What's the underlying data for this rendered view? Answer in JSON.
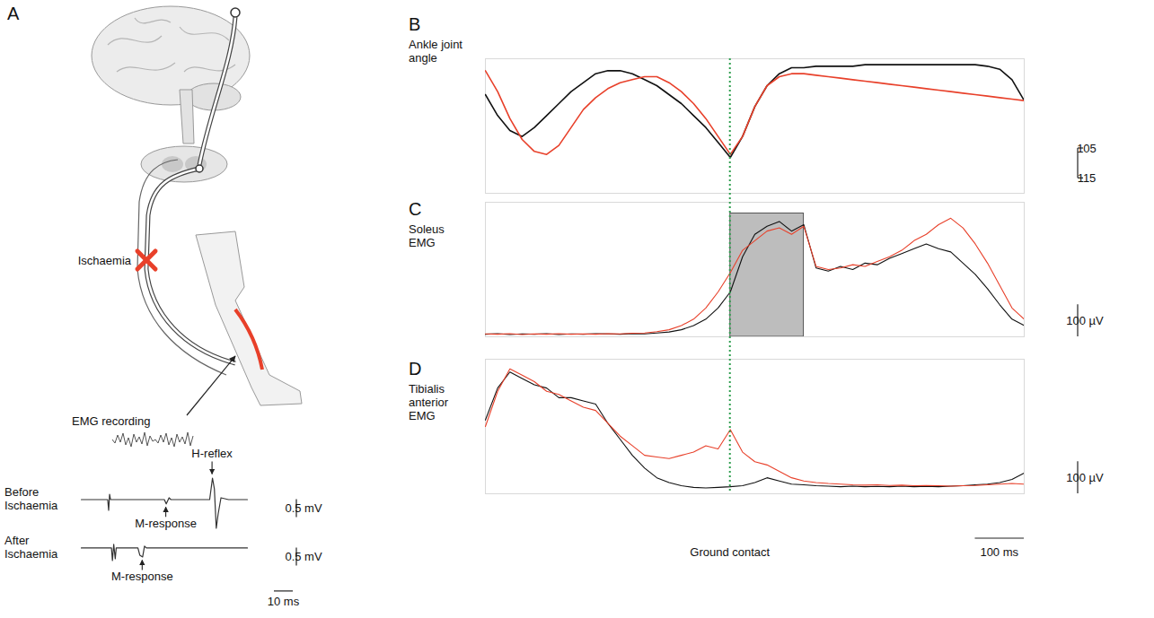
{
  "chart_data": [
    {
      "panel": "B",
      "type": "line",
      "title": "Ankle joint angle",
      "x": [
        0,
        25,
        50,
        75,
        100,
        125,
        150,
        175,
        200,
        225,
        250,
        275,
        300,
        325,
        350,
        375,
        400,
        425,
        450,
        475,
        500,
        525,
        550,
        575,
        600,
        625,
        650,
        675,
        700,
        725,
        750,
        775,
        800,
        825,
        850,
        875,
        900,
        925,
        950,
        975,
        1000,
        1025,
        1050,
        1075,
        1100
      ],
      "xlim": [
        0,
        1100
      ],
      "xticks": [],
      "ylim": [
        120,
        75
      ],
      "yticks": [
        105,
        115
      ],
      "tick_labels": "y",
      "series": [
        {
          "color": "#111111",
          "values": [
            87,
            94,
            99,
            101,
            98,
            94,
            90,
            86,
            83,
            80,
            79,
            79,
            80,
            82,
            84,
            87,
            90,
            94,
            98,
            103,
            108,
            101,
            91,
            84,
            80,
            78,
            78,
            77.5,
            77.5,
            77.5,
            77.5,
            77,
            77,
            77,
            77,
            77,
            77,
            77,
            77,
            77,
            77,
            77.5,
            78.5,
            82,
            89
          ]
        },
        {
          "color": "#e8402a",
          "values": [
            79,
            86,
            95,
            102,
            106,
            107,
            104,
            98,
            92,
            88,
            85,
            83,
            82,
            81,
            81,
            83,
            86,
            90,
            95,
            101,
            107,
            101,
            91,
            84,
            81,
            80,
            80,
            80.5,
            81,
            81.5,
            82,
            82.5,
            83,
            83.5,
            84,
            84.5,
            85,
            85.5,
            86,
            86.5,
            87,
            87.5,
            88,
            88.5,
            89
          ]
        }
      ]
    },
    {
      "panel": "C",
      "type": "line",
      "title": "Soleus EMG",
      "x": [
        0,
        25,
        50,
        75,
        100,
        125,
        150,
        175,
        200,
        225,
        250,
        275,
        300,
        325,
        350,
        375,
        400,
        425,
        450,
        475,
        500,
        525,
        550,
        575,
        600,
        625,
        650,
        675,
        700,
        725,
        750,
        775,
        800,
        825,
        850,
        875,
        900,
        925,
        950,
        975,
        1000,
        1025,
        1050,
        1075,
        1100
      ],
      "xlim": [
        0,
        1100
      ],
      "xticks": [],
      "ylim": [
        0,
        420
      ],
      "yticks": [],
      "tick_labels": false,
      "scale_bar": {
        "value": 100,
        "label": "100 µV"
      },
      "shaded_region": {
        "x": [
          500,
          650
        ],
        "y": [
          0,
          385
        ]
      },
      "series": [
        {
          "color": "#111111",
          "values": [
            8,
            10,
            7,
            9,
            8,
            10,
            7,
            9,
            8,
            10,
            9,
            8,
            10,
            9,
            12,
            15,
            22,
            35,
            55,
            90,
            140,
            250,
            320,
            345,
            360,
            330,
            350,
            215,
            205,
            220,
            210,
            230,
            225,
            245,
            260,
            275,
            290,
            275,
            265,
            230,
            195,
            150,
            100,
            55,
            35
          ]
        },
        {
          "color": "#e8402a",
          "values": [
            9,
            8,
            10,
            7,
            9,
            8,
            10,
            8,
            9,
            8,
            10,
            9,
            11,
            12,
            16,
            22,
            35,
            55,
            90,
            140,
            200,
            270,
            300,
            330,
            340,
            320,
            345,
            220,
            210,
            215,
            225,
            220,
            235,
            250,
            270,
            300,
            320,
            350,
            370,
            340,
            290,
            230,
            160,
            90,
            55
          ]
        }
      ]
    },
    {
      "panel": "D",
      "type": "line",
      "title": "Tibialis anterior EMG",
      "x": [
        0,
        25,
        50,
        75,
        100,
        125,
        150,
        175,
        200,
        225,
        250,
        275,
        300,
        325,
        350,
        375,
        400,
        425,
        450,
        475,
        500,
        525,
        550,
        575,
        600,
        625,
        650,
        675,
        700,
        725,
        750,
        775,
        800,
        825,
        850,
        875,
        900,
        925,
        950,
        975,
        1000,
        1025,
        1050,
        1075,
        1100
      ],
      "xlim": [
        0,
        1100
      ],
      "xticks": [],
      "ylim": [
        0,
        420
      ],
      "yticks": [],
      "tick_labels": false,
      "scale_bar": {
        "value": 100,
        "label": "100 µV"
      },
      "series": [
        {
          "color": "#111111",
          "values": [
            230,
            330,
            380,
            360,
            340,
            330,
            300,
            300,
            290,
            280,
            220,
            170,
            120,
            80,
            50,
            35,
            25,
            20,
            18,
            20,
            22,
            25,
            35,
            50,
            40,
            30,
            28,
            25,
            24,
            22,
            24,
            22,
            23,
            22,
            24,
            22,
            23,
            22,
            24,
            25,
            28,
            30,
            35,
            45,
            65
          ]
        },
        {
          "color": "#e8402a",
          "values": [
            210,
            320,
            390,
            370,
            350,
            320,
            310,
            290,
            270,
            260,
            220,
            180,
            150,
            120,
            115,
            110,
            120,
            130,
            150,
            140,
            200,
            130,
            100,
            90,
            70,
            50,
            40,
            35,
            32,
            30,
            28,
            27,
            28,
            26,
            27,
            25,
            26,
            25,
            24,
            25,
            26,
            28,
            30,
            32,
            30
          ]
        }
      ]
    }
  ],
  "ground_contact": {
    "x": 500,
    "label": "Ground contact",
    "color": "#2e9e4e",
    "line_style": "dotted"
  },
  "time_scale_bar": {
    "value": 100,
    "label": "100 ms"
  },
  "diagram": {
    "panel": "A",
    "lesion_label": "Ischaemia",
    "recording_label": "EMG recording",
    "traces": [
      {
        "title": "Before Ischaemia",
        "x": [
          0,
          14,
          14.5,
          15,
          15.5,
          44,
          45,
          46.5,
          47.5,
          68,
          69.5,
          70.5,
          71.5,
          72.5,
          74,
          78,
          88
        ],
        "values": [
          0,
          0,
          -0.3,
          0.15,
          0,
          0,
          -0.12,
          0.05,
          0,
          0,
          0.6,
          0.3,
          -0.8,
          -0.4,
          0.05,
          0,
          0
        ],
        "annotations": [
          {
            "label": "H-reflex",
            "x": 69.5
          },
          {
            "label": "M-response",
            "x": 45
          }
        ]
      },
      {
        "title": "After Ischaemia",
        "x": [
          0,
          16,
          16.5,
          17.2,
          18,
          18.5,
          30,
          31,
          32.5,
          33.5,
          34.5,
          88
        ],
        "values": [
          0,
          0,
          -0.35,
          0.1,
          -0.3,
          0,
          0,
          -0.2,
          -0.25,
          0.05,
          0,
          0
        ],
        "annotations": [
          {
            "label": "M-response",
            "x": 32.5
          }
        ]
      }
    ],
    "amplitude_scale_bar": {
      "value": 0.5,
      "label": "0.5 mV"
    },
    "time_scale_bar": {
      "value": 10,
      "label": "10 ms"
    }
  }
}
